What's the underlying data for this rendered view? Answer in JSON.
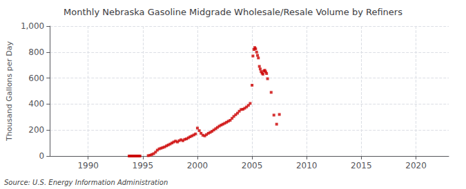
{
  "chart_data": {
    "type": "scatter",
    "title": "Monthly Nebraska Gasoline Midgrade Wholesale/Resale Volume by Refiners",
    "ylabel": "Thousand Gallons per Day",
    "annotation": "Source: U.S. Energy Information Administration",
    "color": "#cc0000",
    "marker": "square",
    "grid": true,
    "xlim": [
      1986.5,
      2023
    ],
    "xticks": [
      1990,
      1995,
      2000,
      2005,
      2010,
      2015,
      2020
    ],
    "ylim": [
      0,
      1000
    ],
    "yticks": [
      0,
      200,
      400,
      600,
      800,
      {
        "value": 1000,
        "label": "1,000"
      }
    ],
    "x": [
      1993.75,
      1993.83,
      1993.92,
      1994.0,
      1994.08,
      1994.17,
      1994.25,
      1994.33,
      1994.42,
      1994.5,
      1994.58,
      1994.67,
      1994.75,
      1995.5,
      1995.67,
      1995.83,
      1996.0,
      1996.17,
      1996.33,
      1996.5,
      1996.67,
      1996.83,
      1997.0,
      1997.17,
      1997.33,
      1997.5,
      1997.67,
      1997.83,
      1998.0,
      1998.17,
      1998.33,
      1998.5,
      1998.67,
      1998.83,
      1999.0,
      1999.17,
      1999.33,
      1999.5,
      1999.67,
      1999.83,
      2000.0,
      2000.17,
      2000.33,
      2000.5,
      2000.67,
      2000.83,
      2001.0,
      2001.17,
      2001.33,
      2001.5,
      2001.67,
      2001.83,
      2002.0,
      2002.17,
      2002.33,
      2002.5,
      2002.67,
      2002.83,
      2003.0,
      2003.17,
      2003.33,
      2003.5,
      2003.67,
      2003.83,
      2004.0,
      2004.17,
      2004.33,
      2004.5,
      2004.67,
      2004.83,
      2005.0,
      2005.08,
      2005.17,
      2005.25,
      2005.33,
      2005.42,
      2005.5,
      2005.58,
      2005.67,
      2005.75,
      2005.83,
      2005.92,
      2006.0,
      2006.08,
      2006.17,
      2006.25,
      2006.33,
      2006.42,
      2006.75,
      2007.0,
      2007.25,
      2007.5
    ],
    "values": [
      0,
      0,
      0,
      0,
      0,
      0,
      0,
      0,
      0,
      0,
      0,
      0,
      0,
      3,
      6,
      12,
      18,
      30,
      45,
      55,
      60,
      65,
      70,
      78,
      85,
      92,
      100,
      108,
      115,
      108,
      118,
      125,
      118,
      128,
      132,
      140,
      148,
      155,
      162,
      170,
      215,
      195,
      175,
      160,
      155,
      165,
      175,
      182,
      190,
      200,
      210,
      220,
      230,
      238,
      245,
      252,
      260,
      268,
      275,
      290,
      305,
      318,
      330,
      345,
      358,
      360,
      368,
      378,
      390,
      405,
      545,
      770,
      820,
      835,
      825,
      800,
      775,
      755,
      690,
      670,
      650,
      638,
      630,
      655,
      660,
      648,
      635,
      595,
      490,
      315,
      245,
      320
    ]
  }
}
